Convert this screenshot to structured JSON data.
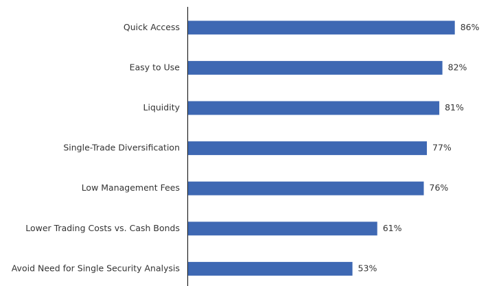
{
  "chart_data": {
    "type": "bar",
    "orientation": "horizontal",
    "categories": [
      "Quick Access",
      "Easy to Use",
      "Liquidity",
      "Single-Trade Diversification",
      "Low Management Fees",
      "Lower Trading Costs vs. Cash Bonds",
      "Avoid Need for Single Security Analysis"
    ],
    "values": [
      86,
      82,
      81,
      77,
      76,
      61,
      53
    ],
    "value_labels": [
      "86%",
      "82%",
      "81%",
      "77%",
      "76%",
      "61%",
      "53%"
    ],
    "color": "#3e68b3",
    "xlim": [
      0,
      100
    ]
  }
}
